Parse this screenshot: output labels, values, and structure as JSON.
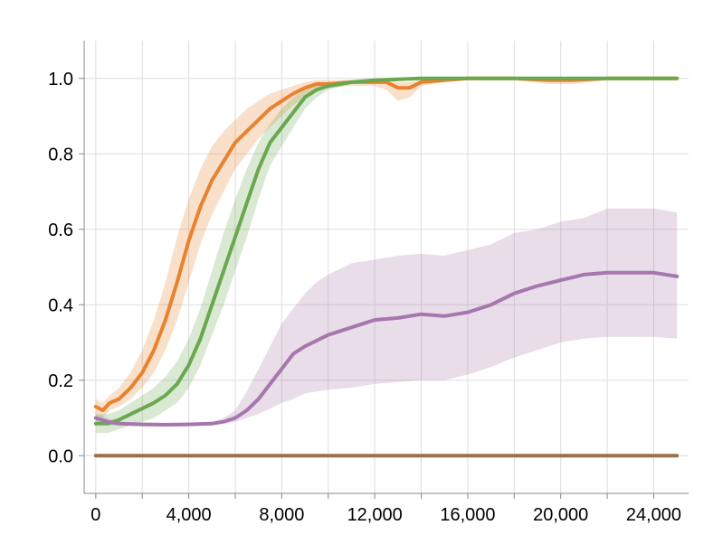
{
  "chart_data": {
    "type": "line",
    "title": "",
    "xlabel": "",
    "ylabel": "",
    "xlim": [
      -500,
      25500
    ],
    "ylim": [
      -0.1,
      1.1
    ],
    "grid": true,
    "legend": "none",
    "x_ticks": [
      0,
      2000,
      4000,
      6000,
      8000,
      10000,
      12000,
      14000,
      16000,
      18000,
      20000,
      22000,
      24000
    ],
    "x_tick_labels": [
      "0",
      "",
      "4,000",
      "",
      "8,000",
      "",
      "12,000",
      "",
      "16,000",
      "",
      "20,000",
      "",
      "24,000"
    ],
    "y_ticks": [
      0.0,
      0.2,
      0.4,
      0.6,
      0.8,
      1.0
    ],
    "y_tick_labels": [
      "0.0",
      "0.2",
      "0.4",
      "0.6",
      "0.8",
      "1.0"
    ],
    "series": [
      {
        "color": "#e8822f",
        "x": [
          0,
          300,
          600,
          1000,
          1500,
          2000,
          2500,
          3000,
          3500,
          4000,
          4500,
          5000,
          5500,
          6000,
          6500,
          7000,
          7500,
          8000,
          8500,
          9000,
          9500,
          10000,
          11000,
          12000,
          12500,
          13000,
          13500,
          14000,
          15000,
          16000,
          18000,
          19500,
          20500,
          22000,
          25000
        ],
        "y": [
          0.13,
          0.12,
          0.14,
          0.15,
          0.18,
          0.22,
          0.28,
          0.36,
          0.46,
          0.57,
          0.66,
          0.73,
          0.78,
          0.83,
          0.86,
          0.89,
          0.92,
          0.94,
          0.96,
          0.975,
          0.985,
          0.985,
          0.99,
          0.99,
          0.99,
          0.975,
          0.975,
          0.99,
          0.995,
          1.0,
          1.0,
          0.995,
          0.995,
          1.0,
          1.0
        ],
        "upper": [
          0.15,
          0.14,
          0.16,
          0.18,
          0.22,
          0.28,
          0.36,
          0.46,
          0.58,
          0.68,
          0.76,
          0.82,
          0.86,
          0.89,
          0.92,
          0.94,
          0.96,
          0.97,
          0.98,
          0.99,
          0.995,
          0.995,
          0.995,
          0.995,
          0.995,
          0.99,
          0.99,
          0.995,
          1.0,
          1.0,
          1.0,
          1.0,
          1.0,
          1.0,
          1.0
        ],
        "lower": [
          0.11,
          0.1,
          0.12,
          0.13,
          0.15,
          0.18,
          0.22,
          0.28,
          0.36,
          0.46,
          0.56,
          0.64,
          0.7,
          0.76,
          0.8,
          0.84,
          0.87,
          0.9,
          0.93,
          0.95,
          0.97,
          0.975,
          0.98,
          0.98,
          0.97,
          0.94,
          0.95,
          0.98,
          0.99,
          0.995,
          0.995,
          0.985,
          0.985,
          0.995,
          0.995
        ]
      },
      {
        "color": "#6aa84f",
        "x": [
          0,
          500,
          1000,
          1500,
          2000,
          2500,
          3000,
          3500,
          4000,
          4500,
          5000,
          5500,
          6000,
          6500,
          7000,
          7500,
          8000,
          8500,
          9000,
          9500,
          10000,
          11000,
          12000,
          14000,
          16000,
          18000,
          20000,
          22000,
          25000
        ],
        "y": [
          0.085,
          0.085,
          0.095,
          0.11,
          0.125,
          0.14,
          0.16,
          0.19,
          0.24,
          0.31,
          0.4,
          0.49,
          0.58,
          0.67,
          0.76,
          0.83,
          0.87,
          0.91,
          0.95,
          0.97,
          0.98,
          0.99,
          0.995,
          1.0,
          1.0,
          1.0,
          1.0,
          1.0,
          1.0
        ],
        "upper": [
          0.11,
          0.11,
          0.12,
          0.14,
          0.16,
          0.18,
          0.21,
          0.25,
          0.31,
          0.39,
          0.49,
          0.59,
          0.68,
          0.76,
          0.83,
          0.88,
          0.92,
          0.95,
          0.97,
          0.985,
          0.99,
          0.995,
          1.0,
          1.0,
          1.0,
          1.0,
          1.0,
          1.0,
          1.0
        ],
        "lower": [
          0.06,
          0.06,
          0.07,
          0.08,
          0.09,
          0.1,
          0.12,
          0.14,
          0.18,
          0.24,
          0.32,
          0.4,
          0.49,
          0.58,
          0.68,
          0.77,
          0.82,
          0.87,
          0.92,
          0.95,
          0.97,
          0.985,
          0.99,
          0.995,
          1.0,
          1.0,
          1.0,
          1.0,
          1.0
        ]
      },
      {
        "color": "#a677ad",
        "x": [
          0,
          500,
          1000,
          2000,
          3000,
          4000,
          5000,
          5500,
          6000,
          6500,
          7000,
          7500,
          8000,
          8500,
          9000,
          9500,
          10000,
          11000,
          12000,
          13000,
          14000,
          15000,
          16000,
          17000,
          18000,
          19000,
          20000,
          21000,
          22000,
          23000,
          24000,
          25000
        ],
        "y": [
          0.1,
          0.09,
          0.085,
          0.083,
          0.082,
          0.083,
          0.085,
          0.09,
          0.1,
          0.12,
          0.15,
          0.19,
          0.23,
          0.27,
          0.29,
          0.305,
          0.32,
          0.34,
          0.36,
          0.365,
          0.375,
          0.37,
          0.38,
          0.4,
          0.43,
          0.45,
          0.465,
          0.48,
          0.485,
          0.485,
          0.485,
          0.475
        ],
        "upper": [
          0.11,
          0.1,
          0.09,
          0.088,
          0.087,
          0.088,
          0.09,
          0.1,
          0.12,
          0.17,
          0.23,
          0.29,
          0.35,
          0.39,
          0.43,
          0.46,
          0.48,
          0.51,
          0.52,
          0.53,
          0.535,
          0.53,
          0.545,
          0.56,
          0.59,
          0.6,
          0.62,
          0.63,
          0.655,
          0.655,
          0.655,
          0.645
        ],
        "lower": [
          0.09,
          0.08,
          0.08,
          0.078,
          0.077,
          0.078,
          0.08,
          0.085,
          0.09,
          0.1,
          0.11,
          0.125,
          0.14,
          0.15,
          0.165,
          0.17,
          0.175,
          0.18,
          0.19,
          0.195,
          0.2,
          0.2,
          0.215,
          0.235,
          0.26,
          0.28,
          0.3,
          0.31,
          0.315,
          0.315,
          0.315,
          0.31
        ]
      },
      {
        "color": "#9b6f50",
        "x": [
          0,
          25000
        ],
        "y": [
          0.0,
          0.0
        ],
        "upper": [
          0.0,
          0.0
        ],
        "lower": [
          0.0,
          0.0
        ]
      }
    ]
  }
}
